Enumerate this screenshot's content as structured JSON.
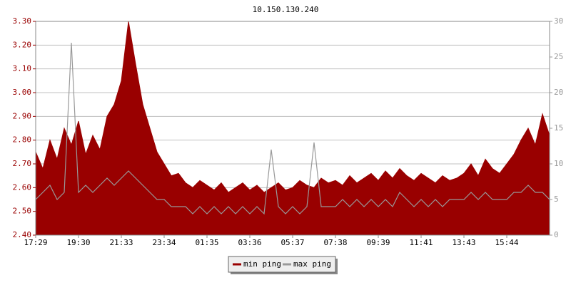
{
  "chart_data": {
    "type": "area-line",
    "title": "10.150.130.240",
    "categories": [
      "17:29",
      null,
      null,
      null,
      null,
      null,
      "19:30",
      null,
      null,
      null,
      null,
      null,
      "21:33",
      null,
      null,
      null,
      null,
      null,
      "23:34",
      null,
      null,
      null,
      null,
      null,
      "01:35",
      null,
      null,
      null,
      null,
      null,
      "03:36",
      null,
      null,
      null,
      null,
      null,
      "05:37",
      null,
      null,
      null,
      null,
      null,
      "07:38",
      null,
      null,
      null,
      null,
      null,
      "09:39",
      null,
      null,
      null,
      null,
      null,
      "11:41",
      null,
      null,
      null,
      null,
      null,
      "13:43",
      null,
      null,
      null,
      null,
      null,
      "15:44",
      null,
      null,
      null,
      null,
      null,
      null
    ],
    "series": [
      {
        "name": "min ping",
        "color": "#990000",
        "axis": "y",
        "values": [
          2.75,
          2.68,
          2.8,
          2.72,
          2.85,
          2.78,
          2.88,
          2.74,
          2.82,
          2.76,
          2.9,
          2.95,
          3.05,
          3.3,
          3.12,
          2.95,
          2.85,
          2.75,
          2.7,
          2.65,
          2.66,
          2.62,
          2.6,
          2.63,
          2.61,
          2.59,
          2.62,
          2.58,
          2.6,
          2.62,
          2.59,
          2.61,
          2.58,
          2.6,
          2.62,
          2.59,
          2.6,
          2.63,
          2.61,
          2.6,
          2.64,
          2.62,
          2.63,
          2.61,
          2.65,
          2.62,
          2.64,
          2.66,
          2.63,
          2.67,
          2.64,
          2.68,
          2.65,
          2.63,
          2.66,
          2.64,
          2.62,
          2.65,
          2.63,
          2.64,
          2.66,
          2.7,
          2.65,
          2.72,
          2.68,
          2.66,
          2.7,
          2.74,
          2.8,
          2.85,
          2.78,
          2.91,
          2.82
        ]
      },
      {
        "name": "max ping",
        "color": "#999999",
        "axis": "y2",
        "values": [
          5,
          6,
          7,
          5,
          6,
          27,
          6,
          7,
          6,
          7,
          8,
          7,
          8,
          9,
          8,
          7,
          6,
          5,
          5,
          4,
          4,
          4,
          3,
          4,
          3,
          4,
          3,
          4,
          3,
          4,
          3,
          4,
          3,
          12,
          4,
          3,
          4,
          3,
          4,
          13,
          4,
          4,
          4,
          5,
          4,
          5,
          4,
          5,
          4,
          5,
          4,
          6,
          5,
          4,
          5,
          4,
          5,
          4,
          5,
          5,
          5,
          6,
          5,
          6,
          5,
          5,
          5,
          6,
          6,
          7,
          6,
          6,
          5
        ]
      }
    ],
    "ylim": [
      2.4,
      3.3
    ],
    "yticks": [
      {
        "value": 2.4,
        "label": "2.40"
      },
      {
        "value": 2.5,
        "label": "2.50"
      },
      {
        "value": 2.6,
        "label": "2.60"
      },
      {
        "value": 2.7,
        "label": "2.70"
      },
      {
        "value": 2.8,
        "label": "2.80"
      },
      {
        "value": 2.9,
        "label": "2.90"
      },
      {
        "value": 3.0,
        "label": "3.00"
      },
      {
        "value": 3.1,
        "label": "3.10"
      },
      {
        "value": 3.2,
        "label": "3.20"
      },
      {
        "value": 3.3,
        "label": "3.30"
      }
    ],
    "y2lim": [
      0,
      30
    ],
    "y2ticks": [
      0,
      5,
      10,
      15,
      20,
      25,
      30
    ],
    "grid": true,
    "legend": "bottom"
  }
}
